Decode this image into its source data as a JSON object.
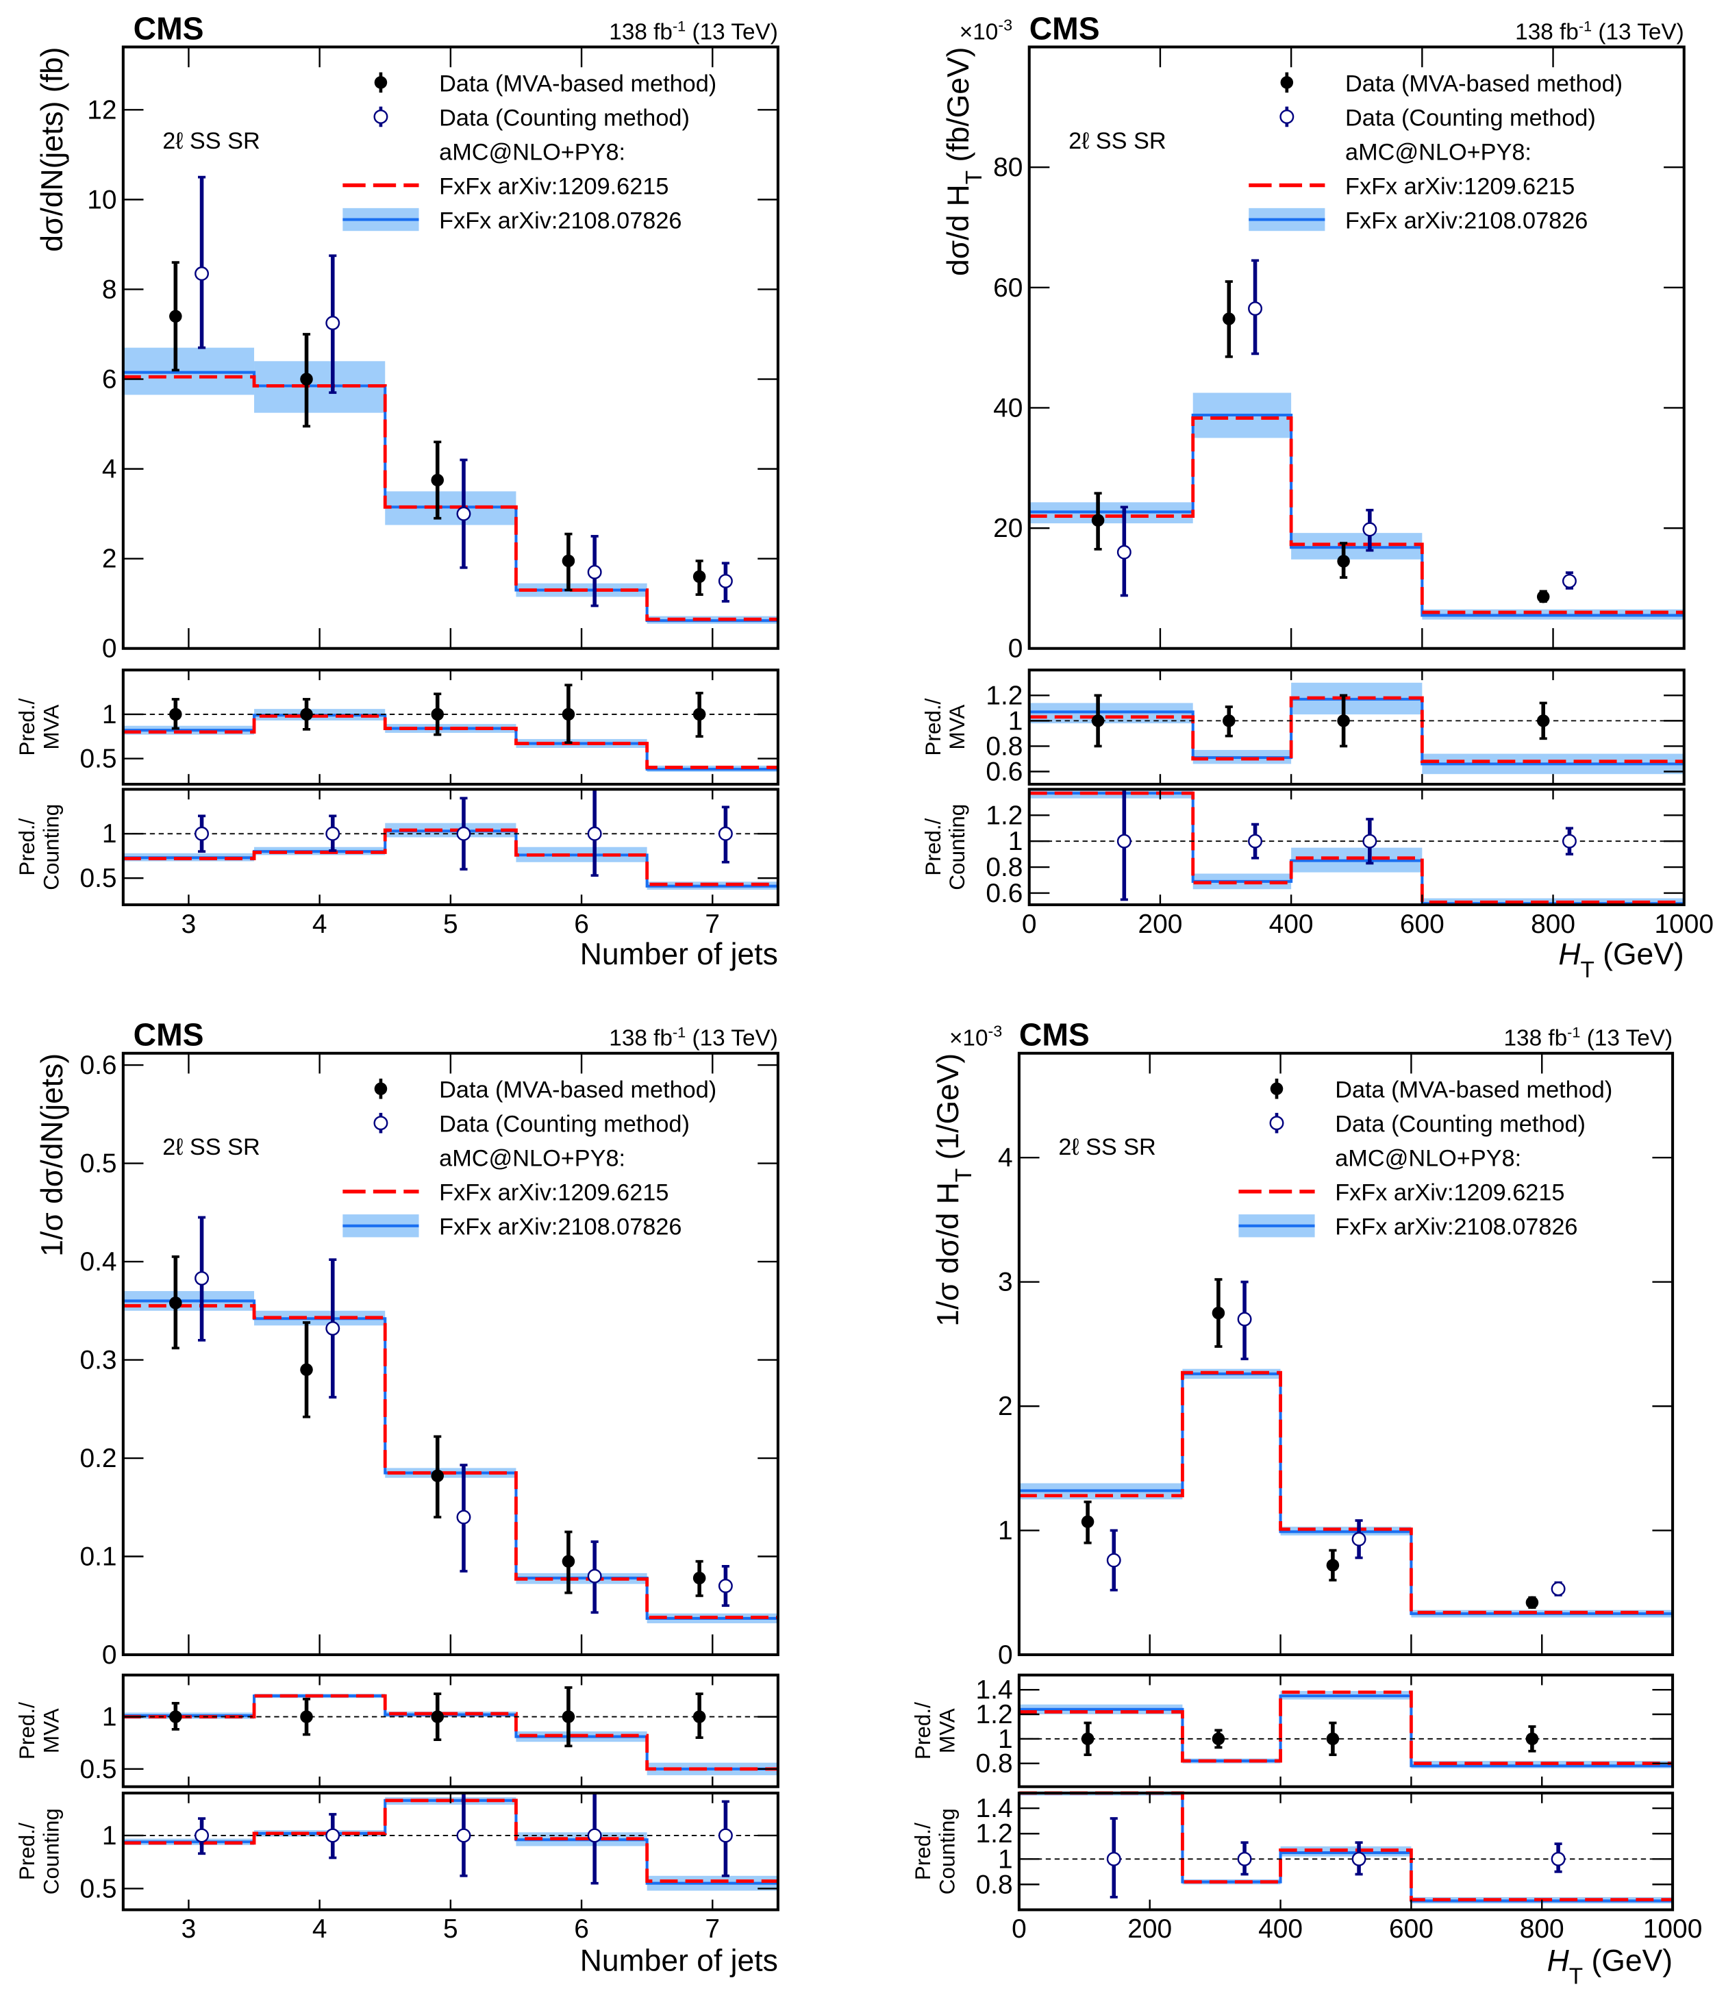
{
  "header": {
    "experiment": "CMS",
    "lumi": "138 fb",
    "lumi_exp": "-1",
    "energy": "(13 TeV)"
  },
  "legend": {
    "mva": "Data (MVA-based method)",
    "counting": "Data (Counting method)",
    "generator": "aMC@NLO+PY8:",
    "pred_old": "FxFx arXiv:1209.6215",
    "pred_new": "FxFx arXiv:2108.07826"
  },
  "region_label": "2ℓ SS SR",
  "ratio_labels": {
    "mva": [
      "Pred./",
      "MVA"
    ],
    "counting": [
      "Pred./",
      "Counting"
    ]
  },
  "colors": {
    "mva": "#000000",
    "counting": "#000080",
    "pred_old": "#ff0000",
    "pred_new": "#1a6ff0",
    "band": "#9fcdfa"
  },
  "chart_data": [
    {
      "type": "histogram-step",
      "xlabel": "Number of jets",
      "ylabel": "dσ/dN(jets) (fb)",
      "multiplier": "",
      "xlim": [
        2.5,
        7.5
      ],
      "xticks": [
        3,
        4,
        5,
        6,
        7
      ],
      "bins": [
        2.5,
        3.5,
        4.5,
        5.5,
        6.5,
        7.5
      ],
      "main": {
        "ylim": [
          0,
          13.4
        ],
        "yticks": [
          0,
          2,
          4,
          6,
          8,
          10,
          12
        ],
        "pred_old": [
          6.05,
          5.85,
          3.15,
          1.3,
          0.65
        ],
        "pred_new": [
          6.15,
          5.85,
          3.15,
          1.3,
          0.62
        ],
        "band_low": [
          5.65,
          5.25,
          2.75,
          1.15,
          0.55
        ],
        "band_high": [
          6.7,
          6.4,
          3.5,
          1.45,
          0.72
        ],
        "mva": {
          "x": [
            2.9,
            3.9,
            4.9,
            5.9,
            6.9
          ],
          "y": [
            7.4,
            6.0,
            3.75,
            1.95,
            1.6
          ],
          "lo": [
            6.2,
            4.95,
            2.9,
            1.3,
            1.2
          ],
          "hi": [
            8.6,
            7.0,
            4.6,
            2.55,
            1.95
          ]
        },
        "counting": {
          "x": [
            3.1,
            4.1,
            5.1,
            6.1,
            7.1
          ],
          "y": [
            8.35,
            7.25,
            3.0,
            1.7,
            1.5
          ],
          "lo": [
            6.7,
            5.7,
            1.8,
            0.95,
            1.05
          ],
          "hi": [
            10.5,
            8.75,
            4.2,
            2.5,
            1.9
          ]
        }
      },
      "ratio_mva": {
        "ylim": [
          0.21,
          1.5
        ],
        "yticks": [
          0.5,
          1
        ],
        "pred_old": [
          0.8,
          0.98,
          0.84,
          0.67,
          0.4
        ],
        "pred_new": [
          0.82,
          0.99,
          0.84,
          0.67,
          0.38
        ],
        "band_low": [
          0.77,
          0.93,
          0.79,
          0.62,
          0.35
        ],
        "band_high": [
          0.87,
          1.06,
          0.89,
          0.72,
          0.42
        ],
        "data": {
          "x": [
            2.9,
            3.9,
            4.9,
            5.9,
            6.9
          ],
          "lo": [
            0.84,
            0.83,
            0.77,
            0.68,
            0.75
          ],
          "hi": [
            1.17,
            1.17,
            1.23,
            1.33,
            1.24
          ]
        }
      },
      "ratio_counting": {
        "ylim": [
          0.2,
          1.5
        ],
        "yticks": [
          0.5,
          1
        ],
        "pred_old": [
          0.72,
          0.79,
          1.04,
          0.76,
          0.43
        ],
        "pred_new": [
          0.73,
          0.8,
          1.03,
          0.76,
          0.41
        ],
        "band_low": [
          0.69,
          0.76,
          0.96,
          0.68,
          0.37
        ],
        "band_high": [
          0.78,
          0.85,
          1.12,
          0.85,
          0.46
        ],
        "data": {
          "x": [
            3.1,
            4.1,
            5.1,
            6.1,
            7.1
          ],
          "lo": [
            0.8,
            0.81,
            0.6,
            0.53,
            0.68
          ],
          "hi": [
            1.2,
            1.2,
            1.4,
            1.5,
            1.3
          ]
        }
      }
    },
    {
      "type": "histogram-step",
      "xlabel": "H_T (GeV)",
      "ylabel": "dσ/d H_T (fb/GeV)",
      "multiplier": "×10",
      "multiplier_exp": "-3",
      "xlim": [
        0,
        1000
      ],
      "xticks": [
        0,
        200,
        400,
        600,
        800,
        1000
      ],
      "bins": [
        0,
        250,
        400,
        600,
        1000
      ],
      "main": {
        "ylim": [
          0,
          100
        ],
        "yticks": [
          0,
          20,
          40,
          60,
          80
        ],
        "pred_old": [
          22,
          38.3,
          17.3,
          6.0
        ],
        "pred_new": [
          22.7,
          38.8,
          16.8,
          5.5
        ],
        "band_low": [
          20.8,
          35,
          14.8,
          4.8
        ],
        "band_high": [
          24.3,
          42.5,
          19.2,
          6.5
        ],
        "mva": {
          "x": [
            105,
            305,
            480,
            785
          ],
          "y": [
            21.3,
            54.8,
            14.5,
            8.6
          ],
          "lo": [
            16.5,
            48.5,
            11.8,
            7.8
          ],
          "hi": [
            25.8,
            61,
            17.5,
            9.5
          ]
        },
        "counting": {
          "x": [
            145,
            345,
            520,
            825
          ],
          "y": [
            16,
            56.5,
            19.8,
            11.2
          ],
          "lo": [
            8.8,
            49,
            16.3,
            10
          ],
          "hi": [
            23.5,
            64.5,
            23,
            12.6
          ]
        }
      },
      "ratio_mva": {
        "ylim": [
          0.5,
          1.4
        ],
        "yticks": [
          0.6,
          0.8,
          1,
          1.2
        ],
        "pred_old": [
          1.03,
          0.7,
          1.18,
          0.68
        ],
        "pred_new": [
          1.07,
          0.71,
          1.17,
          0.66
        ],
        "band_low": [
          0.98,
          0.66,
          1.05,
          0.58
        ],
        "band_high": [
          1.14,
          0.77,
          1.3,
          0.74
        ],
        "data": {
          "x": [
            105,
            305,
            480,
            785
          ],
          "lo": [
            0.8,
            0.88,
            0.8,
            0.86
          ],
          "hi": [
            1.2,
            1.11,
            1.2,
            1.14
          ]
        }
      },
      "ratio_counting": {
        "ylim": [
          0.51,
          1.4
        ],
        "yticks": [
          0.6,
          0.8,
          1,
          1.2
        ],
        "pred_old": [
          1.37,
          0.68,
          0.87,
          0.53
        ],
        "pred_new": [
          1.37,
          0.69,
          0.85,
          0.52
        ],
        "band_low": [
          1.33,
          0.63,
          0.76,
          0.5
        ],
        "band_high": [
          1.4,
          0.75,
          0.95,
          0.56
        ],
        "data": {
          "x": [
            145,
            345,
            520,
            825
          ],
          "lo": [
            0.55,
            0.87,
            0.83,
            0.9
          ],
          "hi": [
            1.4,
            1.13,
            1.17,
            1.1
          ]
        }
      }
    },
    {
      "type": "histogram-step",
      "xlabel": "Number of jets",
      "ylabel": "1/σ dσ/dN(jets)",
      "multiplier": "",
      "xlim": [
        2.5,
        7.5
      ],
      "xticks": [
        3,
        4,
        5,
        6,
        7
      ],
      "bins": [
        2.5,
        3.5,
        4.5,
        5.5,
        6.5,
        7.5
      ],
      "main": {
        "ylim": [
          0,
          0.612
        ],
        "yticks": [
          0,
          0.1,
          0.2,
          0.3,
          0.4,
          0.5,
          0.6
        ],
        "pred_old": [
          0.355,
          0.343,
          0.185,
          0.077,
          0.038
        ],
        "pred_new": [
          0.36,
          0.342,
          0.185,
          0.078,
          0.037
        ],
        "band_low": [
          0.35,
          0.335,
          0.18,
          0.072,
          0.032
        ],
        "band_high": [
          0.37,
          0.35,
          0.19,
          0.083,
          0.042
        ],
        "mva": {
          "x": [
            2.9,
            3.9,
            4.9,
            5.9,
            6.9
          ],
          "y": [
            0.358,
            0.29,
            0.182,
            0.095,
            0.078
          ],
          "lo": [
            0.312,
            0.242,
            0.14,
            0.063,
            0.06
          ],
          "hi": [
            0.405,
            0.338,
            0.222,
            0.125,
            0.095
          ]
        },
        "counting": {
          "x": [
            3.1,
            4.1,
            5.1,
            6.1,
            7.1
          ],
          "y": [
            0.383,
            0.332,
            0.14,
            0.08,
            0.07
          ],
          "lo": [
            0.32,
            0.262,
            0.085,
            0.043,
            0.05
          ],
          "hi": [
            0.445,
            0.402,
            0.193,
            0.115,
            0.09
          ]
        }
      },
      "ratio_mva": {
        "ylim": [
          0.33,
          1.4
        ],
        "yticks": [
          0.5,
          1
        ],
        "pred_old": [
          1.0,
          1.2,
          1.03,
          0.82,
          0.5
        ],
        "pred_new": [
          1.01,
          1.2,
          1.02,
          0.81,
          0.5
        ],
        "band_low": [
          0.98,
          1.18,
          1.0,
          0.76,
          0.44
        ],
        "band_high": [
          1.04,
          1.22,
          1.05,
          0.86,
          0.56
        ],
        "data": {
          "x": [
            2.9,
            3.9,
            4.9,
            5.9,
            6.9
          ],
          "lo": [
            0.88,
            0.83,
            0.78,
            0.72,
            0.8
          ],
          "hi": [
            1.13,
            1.17,
            1.22,
            1.28,
            1.22
          ]
        }
      },
      "ratio_counting": {
        "ylim": [
          0.3,
          1.4
        ],
        "yticks": [
          0.5,
          1
        ],
        "pred_old": [
          0.93,
          1.02,
          1.33,
          0.97,
          0.57
        ],
        "pred_new": [
          0.94,
          1.02,
          1.33,
          0.96,
          0.55
        ],
        "band_low": [
          0.91,
          0.99,
          1.29,
          0.9,
          0.48
        ],
        "band_high": [
          0.97,
          1.05,
          1.36,
          1.03,
          0.62
        ],
        "data": {
          "x": [
            3.1,
            4.1,
            5.1,
            6.1,
            7.1
          ],
          "lo": [
            0.83,
            0.79,
            0.62,
            0.55,
            0.62
          ],
          "hi": [
            1.16,
            1.2,
            1.4,
            1.45,
            1.32
          ]
        }
      }
    },
    {
      "type": "histogram-step",
      "xlabel": "H_T (GeV)",
      "ylabel": "1/σ dσ/d H_T (1/GeV)",
      "multiplier": "×10",
      "multiplier_exp": "-3",
      "xlim": [
        0,
        1000
      ],
      "xticks": [
        0,
        200,
        400,
        600,
        800,
        1000
      ],
      "bins": [
        0,
        250,
        400,
        600,
        1000
      ],
      "main": {
        "ylim": [
          0,
          4.84
        ],
        "yticks": [
          0,
          1,
          2,
          3,
          4
        ],
        "pred_old": [
          1.28,
          2.27,
          1.01,
          0.34
        ],
        "pred_new": [
          1.32,
          2.26,
          0.99,
          0.33
        ],
        "band_low": [
          1.25,
          2.22,
          0.96,
          0.3
        ],
        "band_high": [
          1.38,
          2.3,
          1.03,
          0.36
        ],
        "mva": {
          "x": [
            105,
            305,
            480,
            785
          ],
          "y": [
            1.07,
            2.75,
            0.72,
            0.42
          ],
          "lo": [
            0.9,
            2.48,
            0.6,
            0.38
          ],
          "hi": [
            1.23,
            3.02,
            0.84,
            0.46
          ]
        },
        "counting": {
          "x": [
            145,
            345,
            520,
            825
          ],
          "y": [
            0.76,
            2.7,
            0.93,
            0.53
          ],
          "lo": [
            0.52,
            2.38,
            0.78,
            0.48
          ],
          "hi": [
            1.0,
            3.0,
            1.08,
            0.58
          ]
        }
      },
      "ratio_mva": {
        "ylim": [
          0.61,
          1.52
        ],
        "yticks": [
          0.8,
          1,
          1.2,
          1.4
        ],
        "pred_old": [
          1.22,
          0.82,
          1.38,
          0.8
        ],
        "pred_new": [
          1.24,
          0.82,
          1.35,
          0.78
        ],
        "band_low": [
          1.2,
          0.8,
          1.32,
          0.76
        ],
        "band_high": [
          1.28,
          0.84,
          1.39,
          0.82
        ],
        "data": {
          "x": [
            105,
            305,
            480,
            785
          ],
          "lo": [
            0.87,
            0.93,
            0.87,
            0.9
          ],
          "hi": [
            1.13,
            1.07,
            1.13,
            1.1
          ]
        }
      },
      "ratio_counting": {
        "ylim": [
          0.6,
          1.52
        ],
        "yticks": [
          0.8,
          1,
          1.2,
          1.4
        ],
        "pred_old": [
          1.55,
          0.82,
          1.07,
          0.68
        ],
        "pred_new": [
          1.52,
          0.82,
          1.05,
          0.67
        ],
        "band_low": [
          1.5,
          0.8,
          1.02,
          0.65
        ],
        "band_high": [
          1.56,
          0.84,
          1.1,
          0.7
        ],
        "data": {
          "x": [
            145,
            345,
            520,
            825
          ],
          "lo": [
            0.7,
            0.88,
            0.88,
            0.9
          ],
          "hi": [
            1.32,
            1.13,
            1.13,
            1.12
          ]
        }
      }
    }
  ]
}
